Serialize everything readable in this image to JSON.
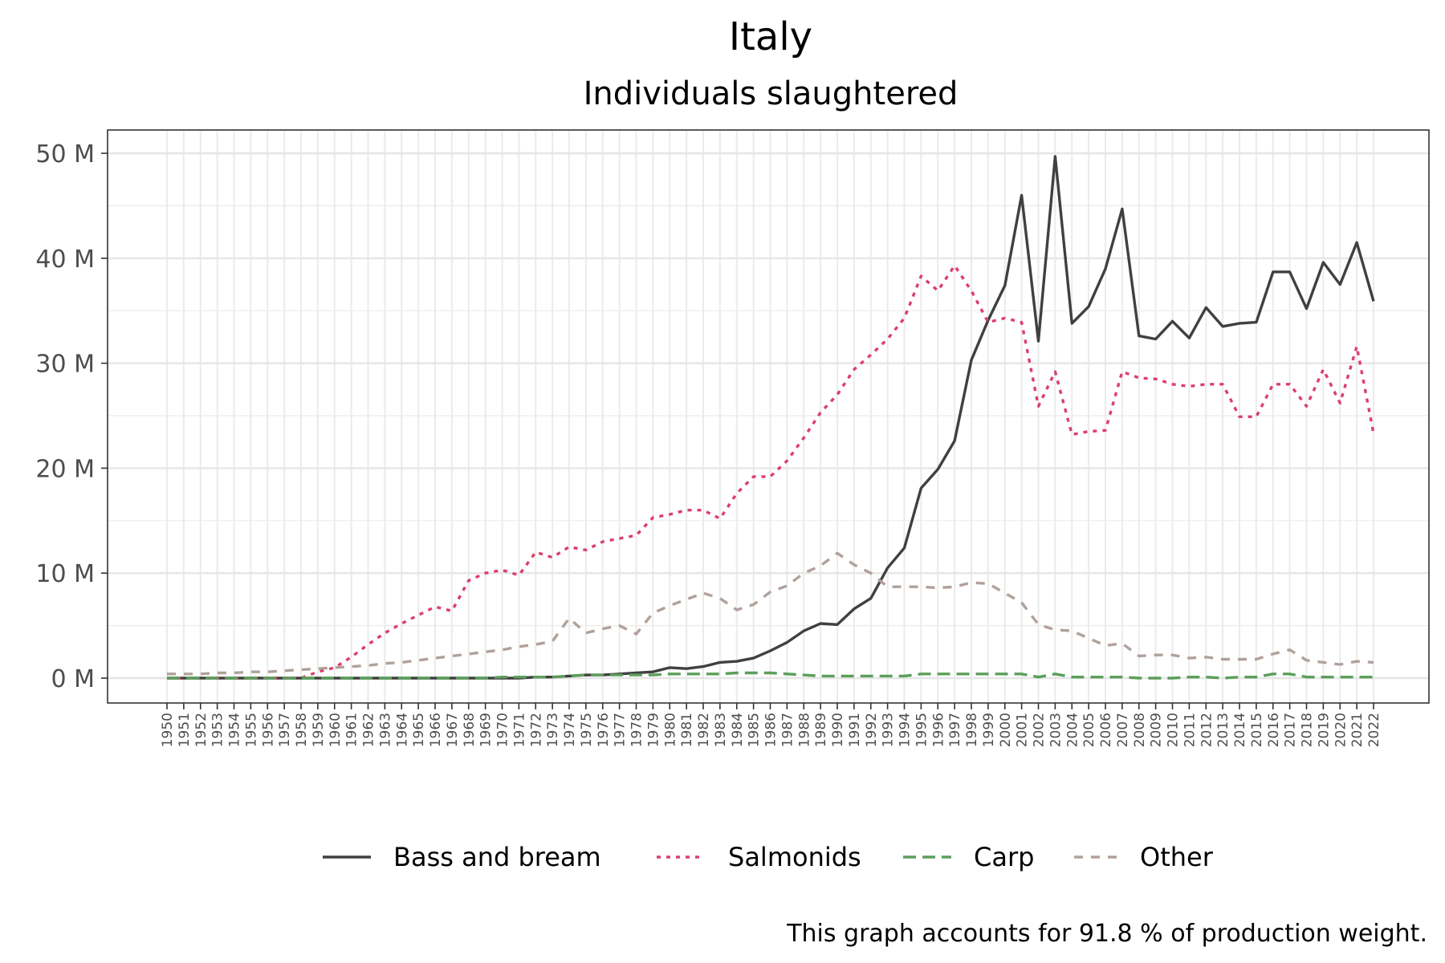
{
  "chart_data": {
    "type": "line",
    "title": "Italy",
    "subtitle": "Individuals slaughtered",
    "caption": "This graph accounts for 91.8 % of production weight.",
    "ylim": [
      0,
      52
    ],
    "y_ticks": [
      0,
      10,
      20,
      30,
      40,
      50
    ],
    "y_tick_labels": [
      "0 M",
      "10 M",
      "20 M",
      "30 M",
      "40 M",
      "50 M"
    ],
    "grid": true,
    "legend_position": "bottom",
    "x": [
      1950,
      1951,
      1952,
      1953,
      1954,
      1955,
      1956,
      1957,
      1958,
      1959,
      1960,
      1961,
      1962,
      1963,
      1964,
      1965,
      1966,
      1967,
      1968,
      1969,
      1970,
      1971,
      1972,
      1973,
      1974,
      1975,
      1976,
      1977,
      1978,
      1979,
      1980,
      1981,
      1982,
      1983,
      1984,
      1985,
      1986,
      1987,
      1988,
      1989,
      1990,
      1991,
      1992,
      1993,
      1994,
      1995,
      1996,
      1997,
      1998,
      1999,
      2000,
      2001,
      2002,
      2003,
      2004,
      2005,
      2006,
      2007,
      2008,
      2009,
      2010,
      2011,
      2012,
      2013,
      2014,
      2015,
      2016,
      2017,
      2018,
      2019,
      2020,
      2021,
      2022
    ],
    "series": [
      {
        "name": "Bass and bream",
        "color": "#404040",
        "dash": "solid",
        "values": [
          0,
          0,
          0,
          0,
          0,
          0,
          0,
          0,
          0,
          0,
          0,
          0,
          0,
          0,
          0,
          0,
          0,
          0,
          0,
          0,
          0,
          0,
          0.1,
          0.1,
          0.2,
          0.3,
          0.3,
          0.4,
          0.5,
          0.6,
          1.0,
          0.9,
          1.1,
          1.5,
          1.6,
          1.9,
          2.6,
          3.4,
          4.5,
          5.2,
          5.1,
          6.6,
          7.6,
          10.5,
          12.4,
          18.1,
          19.9,
          22.6,
          30.3,
          34.1,
          37.4,
          46.0,
          32.1,
          49.7,
          33.8,
          35.4,
          39.0,
          44.7,
          32.6,
          32.3,
          34.0,
          32.4,
          35.3,
          33.5,
          33.8,
          33.9,
          38.7,
          38.7,
          35.2,
          39.6,
          37.5,
          41.5,
          35.9
        ]
      },
      {
        "name": "Salmonids",
        "color": "#dc3f6b",
        "dash": "dotted",
        "values": [
          0,
          0,
          0,
          0,
          0,
          0,
          0,
          0,
          0,
          0.6,
          1.0,
          2.0,
          3.2,
          4.3,
          5.2,
          6.0,
          6.8,
          6.4,
          9.3,
          10.0,
          10.3,
          9.8,
          12.0,
          11.5,
          12.5,
          12.2,
          13.0,
          13.3,
          13.6,
          15.3,
          15.6,
          16.0,
          16.0,
          15.2,
          17.6,
          19.2,
          19.2,
          20.7,
          22.9,
          25.3,
          27.0,
          29.4,
          30.8,
          32.3,
          34.3,
          38.3,
          36.9,
          39.3,
          36.9,
          33.9,
          34.3,
          33.9,
          25.9,
          29.2,
          23.2,
          23.5,
          23.6,
          29.2,
          28.6,
          28.5,
          28.0,
          27.8,
          28.0,
          28.0,
          24.9,
          24.9,
          28.0,
          28.0,
          25.9,
          29.4,
          26.2,
          31.6,
          23.3
        ]
      },
      {
        "name": "Carp",
        "color": "#5c9e5c",
        "dash": "longdash",
        "values": [
          0,
          0,
          0,
          0,
          0,
          0,
          0,
          0,
          0,
          0,
          0,
          0,
          0,
          0,
          0,
          0,
          0,
          0,
          0,
          0,
          0.1,
          0.1,
          0.1,
          0.1,
          0.2,
          0.3,
          0.3,
          0.3,
          0.3,
          0.3,
          0.4,
          0.4,
          0.4,
          0.4,
          0.5,
          0.5,
          0.5,
          0.4,
          0.3,
          0.2,
          0.2,
          0.2,
          0.2,
          0.2,
          0.2,
          0.4,
          0.4,
          0.4,
          0.4,
          0.4,
          0.4,
          0.4,
          0.1,
          0.4,
          0.1,
          0.1,
          0.1,
          0.1,
          0.0,
          0.0,
          0.0,
          0.1,
          0.1,
          0.0,
          0.1,
          0.1,
          0.4,
          0.4,
          0.1,
          0.1,
          0.1,
          0.1,
          0.1
        ]
      },
      {
        "name": "Other",
        "color": "#b0a19b",
        "dash": "dashed",
        "values": [
          0.4,
          0.4,
          0.4,
          0.5,
          0.5,
          0.6,
          0.6,
          0.7,
          0.8,
          0.9,
          1.0,
          1.1,
          1.2,
          1.4,
          1.5,
          1.7,
          1.9,
          2.1,
          2.3,
          2.5,
          2.7,
          3.0,
          3.2,
          3.5,
          5.7,
          4.3,
          4.7,
          5.0,
          4.2,
          6.2,
          6.9,
          7.5,
          8.1,
          7.6,
          6.5,
          7.0,
          8.2,
          8.8,
          10.0,
          10.7,
          11.9,
          10.8,
          10.0,
          8.7,
          8.7,
          8.7,
          8.6,
          8.7,
          9.1,
          9.0,
          8.1,
          7.2,
          5.1,
          4.6,
          4.5,
          3.8,
          3.1,
          3.3,
          2.1,
          2.2,
          2.2,
          1.9,
          2.0,
          1.8,
          1.8,
          1.8,
          2.3,
          2.7,
          1.7,
          1.5,
          1.3,
          1.6,
          1.5
        ]
      }
    ]
  },
  "legend": {
    "items": [
      "Bass and bream",
      "Salmonids",
      "Carp",
      "Other"
    ]
  }
}
